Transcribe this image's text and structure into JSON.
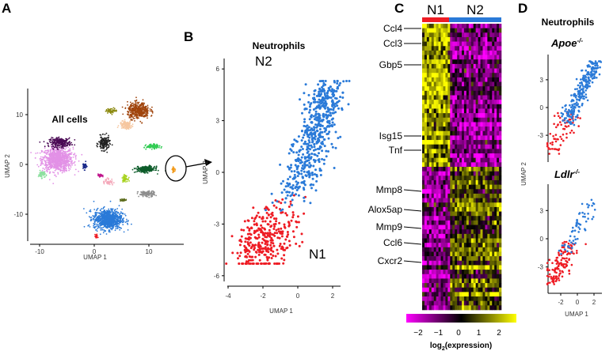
{
  "chart_data": [
    {
      "panel": "A",
      "type": "scatter",
      "title": "All cells",
      "xlabel": "UMAP 1",
      "ylabel": "UMAP 2",
      "xticks": [
        "-10",
        "0",
        "10"
      ],
      "yticks": [
        "10",
        "0",
        "-10"
      ],
      "xlim": [
        -12,
        17
      ],
      "ylim": [
        -15.5,
        14.5
      ],
      "clusters": [
        {
          "color": "#e291e6",
          "x": -6.7,
          "y": 1.0,
          "sx": 2.8,
          "sy": 2.4,
          "n": 900
        },
        {
          "color": "#4b0a55",
          "x": -6.2,
          "y": 4.4,
          "sx": 2.0,
          "sy": 0.9,
          "n": 250
        },
        {
          "color": "#8ee0a0",
          "x": -9.6,
          "y": -2.0,
          "sx": 0.6,
          "sy": 0.7,
          "n": 60
        },
        {
          "color": "#1a2a8a",
          "x": -1.8,
          "y": -0.3,
          "sx": 0.4,
          "sy": 0.7,
          "n": 40
        },
        {
          "color": "#222222",
          "x": 1.8,
          "y": 4.2,
          "sx": 1.0,
          "sy": 1.4,
          "n": 160
        },
        {
          "color": "#2a7ad8",
          "x": 2.5,
          "y": -11.0,
          "sx": 2.6,
          "sy": 2.0,
          "n": 900
        },
        {
          "color": "#ee1c24",
          "x": 0.4,
          "y": -14.5,
          "sx": 0.25,
          "sy": 0.4,
          "n": 25
        },
        {
          "color": "#c0168c",
          "x": 1.1,
          "y": -2.2,
          "sx": 0.4,
          "sy": 0.3,
          "n": 30
        },
        {
          "color": "#f4a7b9",
          "x": 2.5,
          "y": -3.5,
          "sx": 1.0,
          "sy": 0.7,
          "n": 40
        },
        {
          "color": "#8c8a10",
          "x": 3.2,
          "y": 10.8,
          "sx": 1.0,
          "sy": 0.5,
          "n": 60
        },
        {
          "color": "#a0440c",
          "x": 8.1,
          "y": 10.8,
          "sx": 2.0,
          "sy": 1.6,
          "n": 400
        },
        {
          "color": "#f6c7a0",
          "x": 5.8,
          "y": 7.9,
          "sx": 1.1,
          "sy": 0.8,
          "n": 140
        },
        {
          "color": "#a6d21c",
          "x": 5.6,
          "y": -2.8,
          "sx": 0.5,
          "sy": 0.6,
          "n": 50
        },
        {
          "color": "#0d5c2a",
          "x": 9.4,
          "y": -1.0,
          "sx": 1.7,
          "sy": 0.6,
          "n": 250
        },
        {
          "color": "#33cc55",
          "x": 10.8,
          "y": 3.6,
          "sx": 1.2,
          "sy": 0.4,
          "n": 130
        },
        {
          "color": "#8e8e8e",
          "x": 9.6,
          "y": -5.9,
          "sx": 1.5,
          "sy": 0.6,
          "n": 110
        },
        {
          "color": "#f29a1a",
          "x": 14.5,
          "y": -1.1,
          "sx": 0.25,
          "sy": 0.5,
          "n": 25
        },
        {
          "color": "#5a6a1a",
          "x": 5.3,
          "y": -7.2,
          "sx": 0.5,
          "sy": 0.25,
          "n": 30
        }
      ],
      "highlight": "neutrophil cluster circled with arrow to panel B"
    },
    {
      "panel": "B",
      "type": "scatter",
      "title": "Neutrophils",
      "xlabel": "UMAP 1",
      "ylabel": "UMAP 2",
      "xticks": [
        "-4",
        "-2",
        "0",
        "2"
      ],
      "yticks": [
        "6",
        "3",
        "0",
        "-3",
        "-6"
      ],
      "xlim": [
        -4.2,
        3.3
      ],
      "ylim": [
        -6.3,
        6.6
      ],
      "annotations": [
        "N2",
        "N1"
      ],
      "series": [
        {
          "name": "N1",
          "color": "#ee1c24",
          "n": 330
        },
        {
          "name": "N2",
          "color": "#2a7ad8",
          "n": 560
        }
      ]
    },
    {
      "panel": "C",
      "type": "heatmap",
      "groups": [
        {
          "name": "N1",
          "color": "#ee1c24"
        },
        {
          "name": "N2",
          "color": "#2a7ad8"
        }
      ],
      "genes": [
        "Ccl4",
        "Ccl3",
        "Gbp5",
        "Isg15",
        "Tnf",
        "Mmp8",
        "Alox5ap",
        "Mmp9",
        "Ccl6",
        "Cxcr2"
      ],
      "colorbar": {
        "label_main": "log",
        "label_sub": "2",
        "label_rest": "(expression)",
        "ticks": [
          "−2",
          "−1",
          "0",
          "1",
          "2"
        ],
        "range": [
          -2,
          2
        ],
        "colors": [
          "#ff00ff",
          "#000000",
          "#ffff00"
        ]
      },
      "pattern": "top genes high in N1 / low in N2; bottom genes low in N1 / high in N2"
    },
    {
      "panel": "D",
      "type": "scatter",
      "title": "Neutrophils",
      "subplots": [
        {
          "title": "Apoe",
          "sup": "-/-",
          "yticks": [
            "3",
            "0",
            "-3"
          ],
          "n1": 70,
          "n2": 260
        },
        {
          "title": "Ldlr",
          "sup": "-/-",
          "yticks": [
            "3",
            "0",
            "-3"
          ],
          "n1": 130,
          "n2": 60
        }
      ],
      "xlabel": "UMAP 1",
      "ylabel": "UMAP 2",
      "xticks": [
        "-2",
        "0",
        "2"
      ]
    }
  ],
  "panels": {
    "a": "A",
    "b": "B",
    "c": "C",
    "d": "D"
  }
}
